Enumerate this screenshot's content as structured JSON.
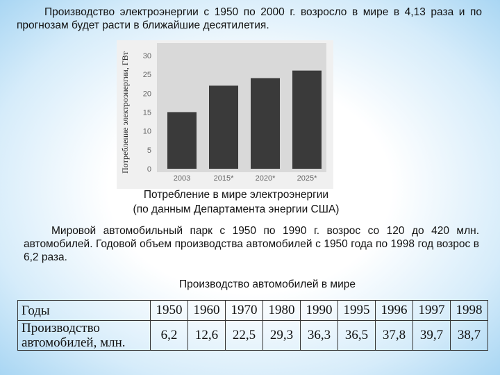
{
  "intro": "Производство электроэнергии с 1950 по 2000 г. возросло в мире в 4,13 раза и по прогнозам будет расти в ближайшие десятилетия.",
  "chart_data": {
    "type": "bar",
    "ylabel": "Потребление электроэнергии, ГВт",
    "categories": [
      "2003",
      "2015*",
      "2020*",
      "2025*"
    ],
    "values": [
      15,
      22,
      24,
      26
    ],
    "color": "#3a3a3a",
    "ylim": [
      0,
      32
    ],
    "yticks": [
      0,
      5,
      10,
      15,
      20,
      25,
      30
    ],
    "grid": false
  },
  "chart_caption": [
    "Потребление в мире электроэнергии",
    "(по данным Департамента энергии США)"
  ],
  "cars_text": "Мировой автомобильный парк с 1950 по 1990 г. возрос со 120 до 420 млн. автомобилей. Годовой объем производства автомобилей с 1950 года по 1998 год возрос в 6,2 раза.",
  "table_title": "Производство автомобилей в мире",
  "table": {
    "rows": [
      [
        "Годы",
        "1950",
        "1960",
        "1970",
        "1980",
        "1990",
        "1995",
        "1996",
        "1997",
        "1998"
      ],
      [
        "Производство автомобилей, млн.",
        "6,2",
        "12,6",
        "22,5",
        "29,3",
        "36,3",
        "36,5",
        "37,8",
        "39,7",
        "38,7"
      ]
    ]
  }
}
